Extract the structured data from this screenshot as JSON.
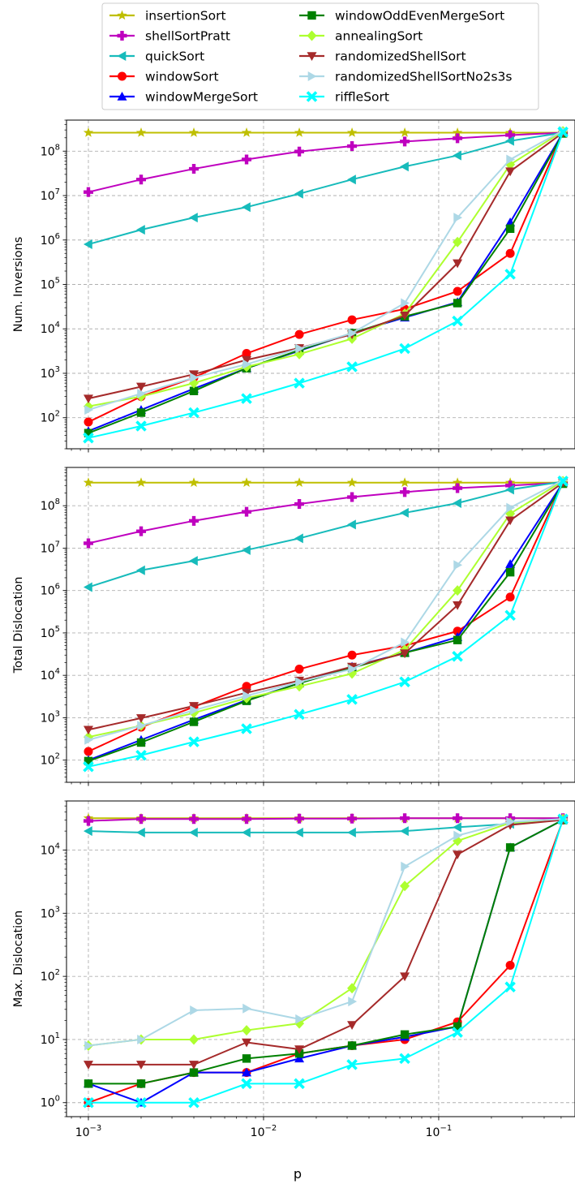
{
  "figure": {
    "xlabel": "p",
    "x_tick_labels": [
      "10^-3",
      "10^-2",
      "10^-1"
    ]
  },
  "legend": {
    "placement": "top-center",
    "items": [
      {
        "name": "insertionSort",
        "color": "#bfbf00",
        "marker": "star"
      },
      {
        "name": "shellSortPratt",
        "color": "#bf00bf",
        "marker": "plus"
      },
      {
        "name": "quickSort",
        "color": "#17bbbb",
        "marker": "triangle-left"
      },
      {
        "name": "windowSort",
        "color": "#ff0000",
        "marker": "circle"
      },
      {
        "name": "windowMergeSort",
        "color": "#0000ff",
        "marker": "triangle-up"
      },
      {
        "name": "windowOddEvenMergeSort",
        "color": "#008000",
        "marker": "square"
      },
      {
        "name": "annealingSort",
        "color": "#adff2f",
        "marker": "diamond"
      },
      {
        "name": "randomizedShellSort",
        "color": "#a52a2a",
        "marker": "triangle-down"
      },
      {
        "name": "randomizedShellSortNo2s3s",
        "color": "#add8e6",
        "marker": "triangle-right"
      },
      {
        "name": "riffleSort",
        "color": "#00ffff",
        "marker": "x"
      }
    ]
  },
  "chart_data": [
    {
      "type": "line",
      "ylabel": "Num. Inversions",
      "xscale": "log",
      "yscale": "log",
      "xlim": [
        0.00075,
        0.6
      ],
      "ylim": [
        20,
        500000000
      ],
      "y_ticks": [
        100,
        1000,
        10000,
        100000,
        1000000,
        10000000,
        100000000
      ],
      "y_tick_labels": [
        "10^2",
        "10^3",
        "10^4",
        "10^5",
        "10^6",
        "10^7",
        "10^8"
      ],
      "grid": true,
      "x": [
        0.001,
        0.002,
        0.004,
        0.008,
        0.016,
        0.032,
        0.064,
        0.128,
        0.256,
        0.512
      ],
      "series": [
        {
          "name": "insertionSort",
          "values": [
            260000000,
            260000000,
            260000000,
            260000000,
            260000000,
            260000000,
            260000000,
            260000000,
            260000000,
            260000000
          ]
        },
        {
          "name": "shellSortPratt",
          "values": [
            12000000,
            23000000,
            40000000,
            65000000,
            98000000,
            130000000,
            165000000,
            195000000,
            230000000,
            260000000
          ]
        },
        {
          "name": "quickSort",
          "values": [
            800000,
            1700000,
            3200000,
            5500000,
            11000000,
            23000000,
            45000000,
            80000000,
            170000000,
            260000000
          ]
        },
        {
          "name": "windowSort",
          "values": [
            80,
            300,
            800,
            2800,
            7500,
            16000,
            28000,
            70000,
            500000,
            260000000
          ]
        },
        {
          "name": "windowMergeSort",
          "values": [
            50,
            150,
            450,
            1300,
            3200,
            8000,
            18000,
            40000,
            2500000,
            260000000
          ]
        },
        {
          "name": "windowOddEvenMergeSort",
          "values": [
            45,
            130,
            400,
            1300,
            3300,
            8000,
            19000,
            38000,
            1800000,
            250000000
          ]
        },
        {
          "name": "annealingSort",
          "values": [
            180,
            300,
            600,
            1400,
            2700,
            6000,
            22000,
            900000,
            50000000,
            280000000
          ]
        },
        {
          "name": "randomizedShellSort",
          "values": [
            270,
            500,
            950,
            2000,
            3700,
            7500,
            20000,
            300000,
            35000000,
            260000000
          ]
        },
        {
          "name": "randomizedShellSortNo2s3s",
          "values": [
            150,
            350,
            800,
            1600,
            3600,
            8000,
            38000,
            3200000,
            65000000,
            290000000
          ]
        },
        {
          "name": "riffleSort",
          "values": [
            35,
            65,
            130,
            270,
            600,
            1400,
            3600,
            15000,
            170000,
            270000000
          ]
        }
      ]
    },
    {
      "type": "line",
      "ylabel": "Total Dislocation",
      "xscale": "log",
      "yscale": "log",
      "xlim": [
        0.00075,
        0.6
      ],
      "ylim": [
        30,
        800000000
      ],
      "y_ticks": [
        100,
        1000,
        10000,
        100000,
        1000000,
        10000000,
        100000000
      ],
      "y_tick_labels": [
        "10^2",
        "10^3",
        "10^4",
        "10^5",
        "10^6",
        "10^7",
        "10^8"
      ],
      "grid": true,
      "x": [
        0.001,
        0.002,
        0.004,
        0.008,
        0.016,
        0.032,
        0.064,
        0.128,
        0.256,
        0.512
      ],
      "series": [
        {
          "name": "insertionSort",
          "values": [
            350000000,
            350000000,
            350000000,
            350000000,
            350000000,
            350000000,
            350000000,
            350000000,
            350000000,
            350000000
          ]
        },
        {
          "name": "shellSortPratt",
          "values": [
            13000000,
            25000000,
            44000000,
            72000000,
            110000000,
            160000000,
            210000000,
            260000000,
            300000000,
            350000000
          ]
        },
        {
          "name": "quickSort",
          "values": [
            1200000,
            3000000,
            5000000,
            9000000,
            17000000,
            36000000,
            68000000,
            115000000,
            240000000,
            370000000
          ]
        },
        {
          "name": "windowSort",
          "values": [
            160,
            600,
            1800,
            5500,
            14000,
            30000,
            50000,
            110000,
            700000,
            350000000
          ]
        },
        {
          "name": "windowMergeSort",
          "values": [
            100,
            300,
            900,
            2600,
            6500,
            16000,
            34000,
            80000,
            4200000,
            350000000
          ]
        },
        {
          "name": "windowOddEvenMergeSort",
          "values": [
            95,
            260,
            800,
            2500,
            6500,
            15000,
            34000,
            68000,
            2700000,
            330000000
          ]
        },
        {
          "name": "annealingSort",
          "values": [
            350,
            650,
            1300,
            2900,
            5500,
            11000,
            40000,
            1000000,
            65000000,
            380000000
          ]
        },
        {
          "name": "randomizedShellSort",
          "values": [
            520,
            980,
            1900,
            3900,
            7500,
            16000,
            33000,
            450000,
            45000000,
            350000000
          ]
        },
        {
          "name": "randomizedShellSortNo2s3s",
          "values": [
            300,
            650,
            1500,
            3300,
            7000,
            14000,
            60000,
            4000000,
            90000000,
            400000000
          ]
        },
        {
          "name": "riffleSort",
          "values": [
            70,
            130,
            270,
            550,
            1200,
            2700,
            7000,
            28000,
            260000,
            380000000
          ]
        }
      ]
    },
    {
      "type": "line",
      "ylabel": "Max. Dislocation",
      "xscale": "log",
      "yscale": "log",
      "xlim": [
        0.00075,
        0.6
      ],
      "ylim": [
        0.6,
        60000
      ],
      "y_ticks": [
        1,
        10,
        100,
        1000,
        10000
      ],
      "y_tick_labels": [
        "10^0",
        "10^1",
        "10^2",
        "10^3",
        "10^4"
      ],
      "grid": true,
      "x": [
        0.001,
        0.002,
        0.004,
        0.008,
        0.016,
        0.032,
        0.064,
        0.128,
        0.256,
        0.512
      ],
      "series": [
        {
          "name": "insertionSort",
          "values": [
            32000,
            32000,
            32000,
            32000,
            32000,
            32000,
            32000,
            32000,
            32000,
            32000
          ]
        },
        {
          "name": "shellSortPratt",
          "values": [
            29000,
            31000,
            31000,
            31000,
            31500,
            31500,
            32000,
            32000,
            32000,
            32000
          ]
        },
        {
          "name": "quickSort",
          "values": [
            20000,
            19000,
            19000,
            19000,
            19000,
            19000,
            20000,
            23000,
            26000,
            30000
          ]
        },
        {
          "name": "windowSort",
          "values": [
            1,
            2,
            3,
            3,
            6,
            8,
            10,
            19,
            150,
            30000
          ]
        },
        {
          "name": "windowMergeSort",
          "values": [
            2,
            1,
            3,
            3,
            5,
            8,
            11,
            16,
            11000,
            30000
          ]
        },
        {
          "name": "windowOddEvenMergeSort",
          "values": [
            2,
            2,
            3,
            5,
            6,
            8,
            12,
            16,
            11000,
            30000
          ]
        },
        {
          "name": "annealingSort",
          "values": [
            8,
            10,
            10,
            14,
            18,
            65,
            2700,
            14000,
            27000,
            31000
          ]
        },
        {
          "name": "randomizedShellSort",
          "values": [
            4,
            4,
            4,
            9,
            7,
            17,
            100,
            8500,
            25000,
            30000
          ]
        },
        {
          "name": "randomizedShellSortNo2s3s",
          "values": [
            8,
            10,
            29,
            31,
            21,
            40,
            5500,
            17000,
            28000,
            31000
          ]
        },
        {
          "name": "riffleSort",
          "values": [
            1,
            1,
            1,
            2,
            2,
            4,
            5,
            13,
            68,
            31000
          ]
        }
      ]
    }
  ]
}
